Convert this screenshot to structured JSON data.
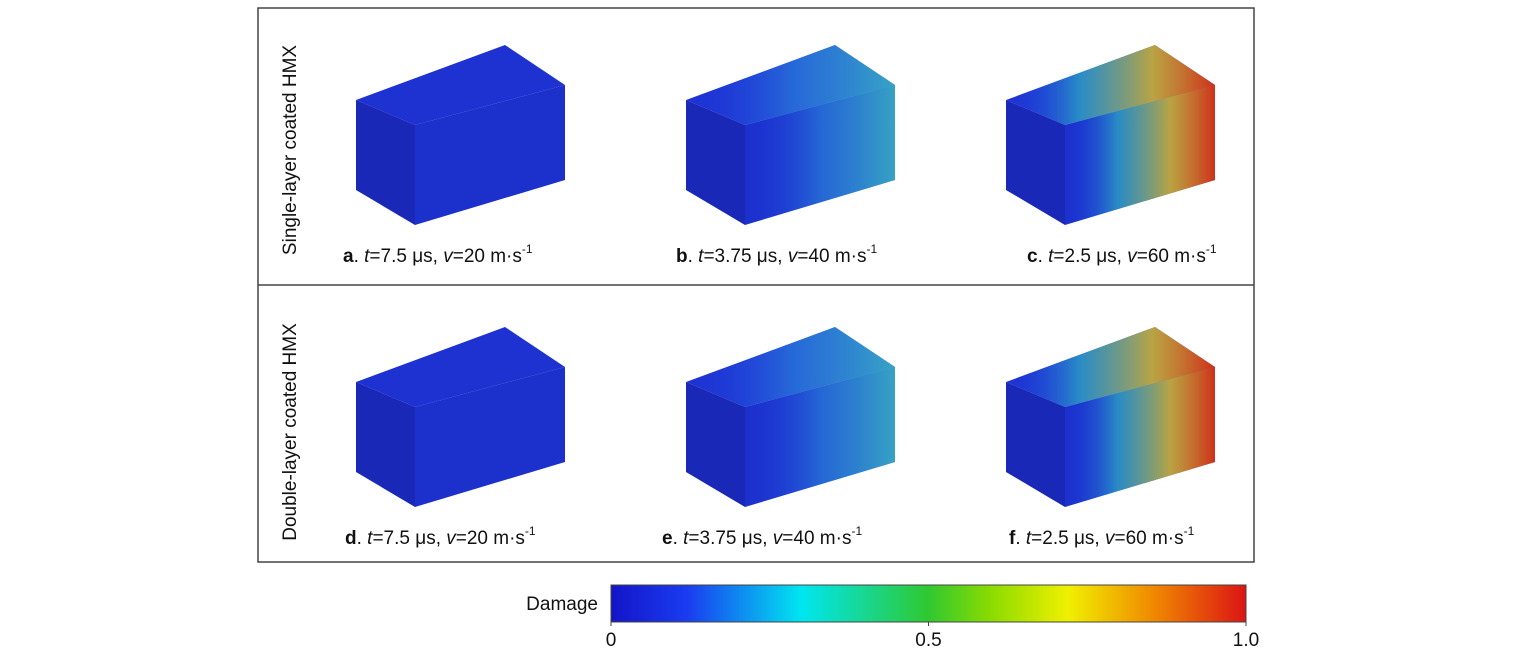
{
  "rows": [
    {
      "label": "Single-layer coated HMX",
      "panels": [
        {
          "caption": [
            {
              "text": "a",
              "style": "bold"
            },
            {
              "text": ". ",
              "style": "normal"
            },
            {
              "text": "t",
              "style": "italic"
            },
            {
              "text": "=7.5 μs, ",
              "style": "normal"
            },
            {
              "text": "v",
              "style": "italic"
            },
            {
              "text": "=20 m·s",
              "style": "normal"
            },
            {
              "text": "-1",
              "style": "sup"
            }
          ],
          "damage": "low"
        },
        {
          "caption": [
            {
              "text": "b",
              "style": "bold"
            },
            {
              "text": ". ",
              "style": "normal"
            },
            {
              "text": "t",
              "style": "italic"
            },
            {
              "text": "=3.75 μs, ",
              "style": "normal"
            },
            {
              "text": "v",
              "style": "italic"
            },
            {
              "text": "=40 m·s",
              "style": "normal"
            },
            {
              "text": "-1",
              "style": "sup"
            }
          ],
          "damage": "medium"
        },
        {
          "caption": [
            {
              "text": "c",
              "style": "bold"
            },
            {
              "text": ". ",
              "style": "normal"
            },
            {
              "text": "t",
              "style": "italic"
            },
            {
              "text": "=2.5 μs, ",
              "style": "normal"
            },
            {
              "text": "v",
              "style": "italic"
            },
            {
              "text": "=60 m·s",
              "style": "normal"
            },
            {
              "text": "-1",
              "style": "sup"
            }
          ],
          "damage": "high"
        }
      ]
    },
    {
      "label": "Double-layer coated HMX",
      "panels": [
        {
          "caption": [
            {
              "text": "d",
              "style": "bold"
            },
            {
              "text": ". ",
              "style": "normal"
            },
            {
              "text": "t",
              "style": "italic"
            },
            {
              "text": "=7.5 μs, ",
              "style": "normal"
            },
            {
              "text": "v",
              "style": "italic"
            },
            {
              "text": "=20 m·s",
              "style": "normal"
            },
            {
              "text": "-1",
              "style": "sup"
            }
          ],
          "damage": "low"
        },
        {
          "caption": [
            {
              "text": "e",
              "style": "bold"
            },
            {
              "text": ". ",
              "style": "normal"
            },
            {
              "text": "t",
              "style": "italic"
            },
            {
              "text": "=3.75 μs, ",
              "style": "normal"
            },
            {
              "text": "v",
              "style": "italic"
            },
            {
              "text": "=40 m·s",
              "style": "normal"
            },
            {
              "text": "-1",
              "style": "sup"
            }
          ],
          "damage": "medium"
        },
        {
          "caption": [
            {
              "text": "f",
              "style": "bold"
            },
            {
              "text": ". ",
              "style": "normal"
            },
            {
              "text": "t",
              "style": "italic"
            },
            {
              "text": "=2.5 μs, ",
              "style": "normal"
            },
            {
              "text": "v",
              "style": "italic"
            },
            {
              "text": "=60 m·s",
              "style": "normal"
            },
            {
              "text": "-1",
              "style": "sup"
            }
          ],
          "damage": "high"
        }
      ]
    }
  ],
  "colorbar": {
    "label": "Damage",
    "range": [
      0,
      1
    ],
    "ticks": [
      0,
      0.5,
      {
        "value": 1,
        "label": "1.0"
      }
    ]
  }
}
